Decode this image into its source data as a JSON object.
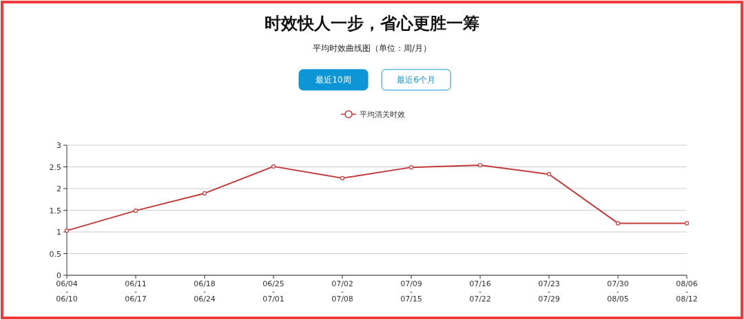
{
  "chart_data": {
    "type": "line",
    "title": "时效快人一步，省心更胜一筹",
    "subtitle": "平均时效曲线图（单位：周/月）",
    "annotations": [
      "最近10周",
      "最近6个月"
    ],
    "categories": [
      "06/04\n-\n06/10",
      "06/11\n-\n06/17",
      "06/18\n-\n06/24",
      "06/25\n-\n07/01",
      "07/02\n-\n07/08",
      "07/09\n-\n07/15",
      "07/16\n-\n07/22",
      "07/23\n-\n07/29",
      "07/30\n-\n08/05",
      "08/06\n-\n08/12"
    ],
    "series": [
      {
        "name": "平均清关时效",
        "color": "#c23a3a",
        "values": [
          1.03,
          1.49,
          1.89,
          2.51,
          2.24,
          2.49,
          2.54,
          2.33,
          1.2,
          1.2
        ]
      }
    ],
    "ylim": [
      0,
      3
    ],
    "yticks": [
      0,
      0.5,
      1,
      1.5,
      2,
      2.5,
      3
    ],
    "grid": "y",
    "legend": "top",
    "marker": "circle",
    "line_style": "solid"
  }
}
